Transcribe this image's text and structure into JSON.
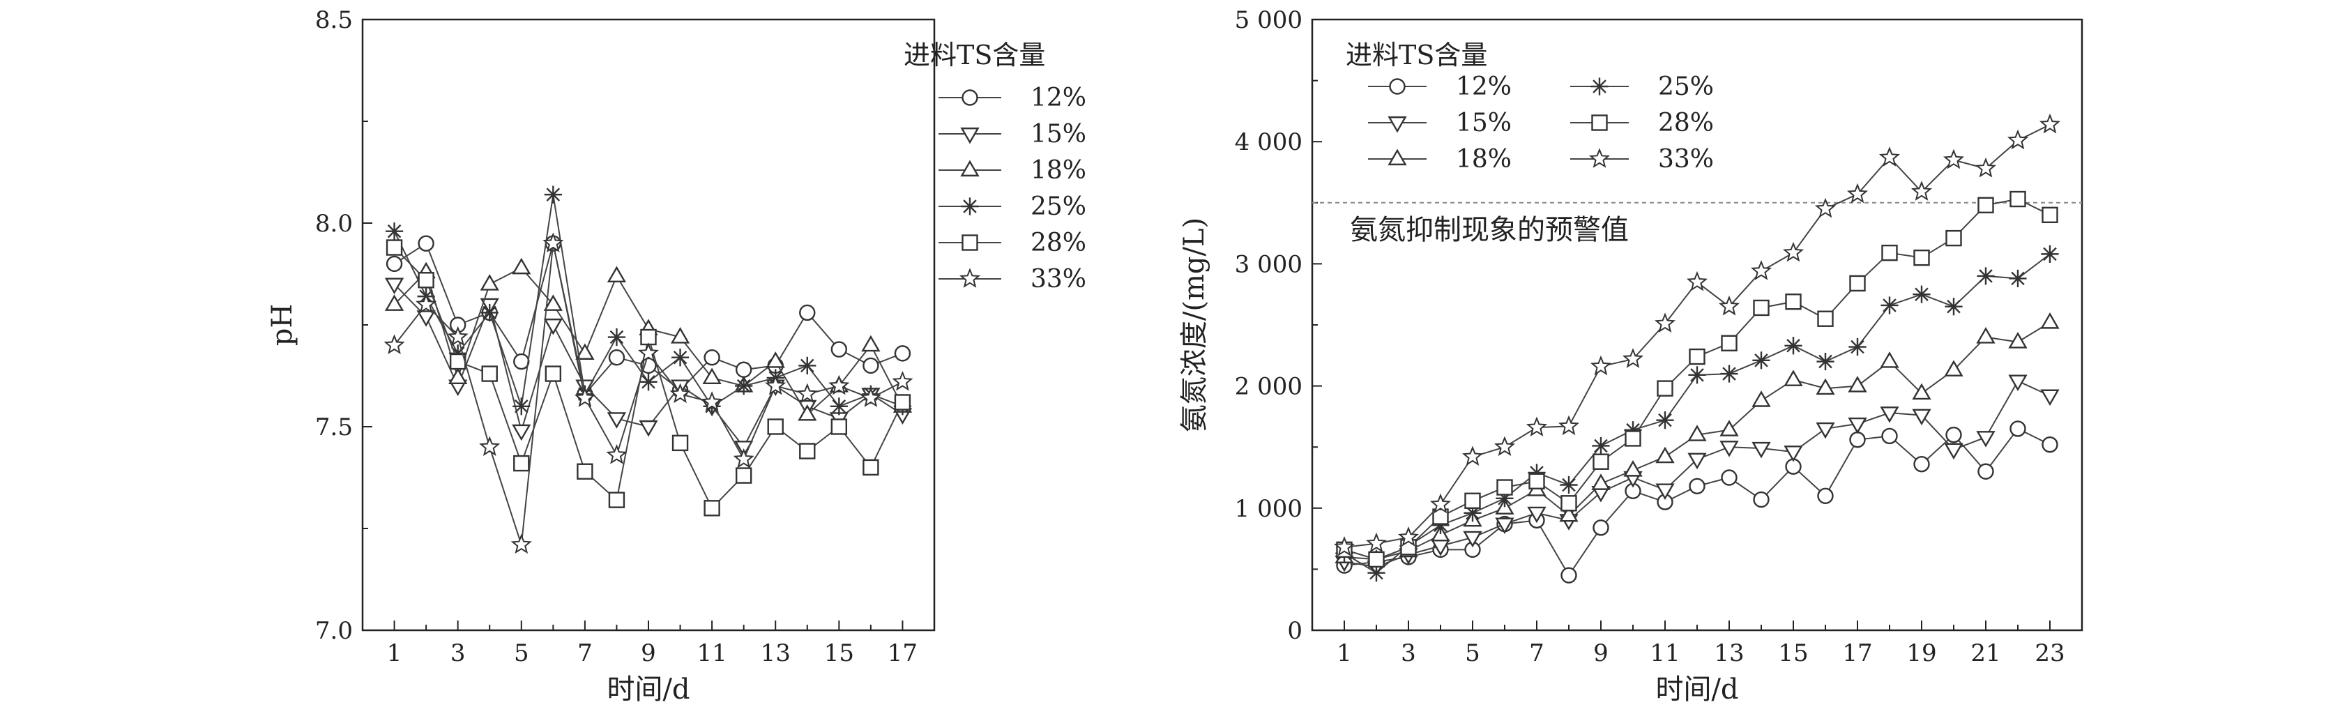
{
  "chart_data": [
    {
      "type": "line",
      "xlabel": "时间/d",
      "ylabel": "pH",
      "xlim": [
        0,
        18
      ],
      "ylim": [
        7.0,
        8.5
      ],
      "x_ticks": [
        "1",
        "3",
        "5",
        "7",
        "9",
        "11",
        "13",
        "15",
        "17"
      ],
      "y_ticks": [
        "7.0",
        "7.5",
        "8.0",
        "8.5"
      ],
      "legend_title": "进料TS含量",
      "legend_position": "top-right",
      "grid": false,
      "x": [
        1,
        2,
        3,
        4,
        5,
        6,
        7,
        8,
        9,
        10,
        11,
        12,
        13,
        14,
        15,
        16,
        17
      ],
      "series": [
        {
          "name": "12%",
          "marker": "circle",
          "values": [
            7.9,
            7.95,
            7.75,
            7.78,
            7.66,
            7.95,
            7.58,
            7.67,
            7.65,
            7.59,
            7.67,
            7.64,
            7.65,
            7.78,
            7.69,
            7.65,
            7.68
          ]
        },
        {
          "name": "15%",
          "marker": "triangle-down",
          "values": [
            7.85,
            7.77,
            7.6,
            7.8,
            7.49,
            7.75,
            7.6,
            7.52,
            7.5,
            7.6,
            7.55,
            7.45,
            7.6,
            7.55,
            7.52,
            7.58,
            7.53
          ]
        },
        {
          "name": "18%",
          "marker": "triangle-up",
          "values": [
            7.8,
            7.88,
            7.62,
            7.85,
            7.89,
            7.8,
            7.68,
            7.87,
            7.74,
            7.72,
            7.62,
            7.6,
            7.66,
            7.53,
            7.6,
            7.7,
            7.55
          ]
        },
        {
          "name": "25%",
          "marker": "star-asterisk",
          "values": [
            7.98,
            7.82,
            7.68,
            7.78,
            7.55,
            8.07,
            7.58,
            7.72,
            7.61,
            7.67,
            7.55,
            7.6,
            7.62,
            7.65,
            7.55,
            7.58,
            7.55
          ]
        },
        {
          "name": "28%",
          "marker": "square",
          "values": [
            7.94,
            7.86,
            7.66,
            7.63,
            7.41,
            7.63,
            7.39,
            7.32,
            7.72,
            7.46,
            7.3,
            7.38,
            7.5,
            7.44,
            7.5,
            7.4,
            7.56
          ]
        },
        {
          "name": "33%",
          "marker": "star",
          "values": [
            7.7,
            7.8,
            7.72,
            7.45,
            7.21,
            7.95,
            7.57,
            7.43,
            7.68,
            7.58,
            7.56,
            7.42,
            7.6,
            7.58,
            7.6,
            7.57,
            7.61
          ]
        }
      ]
    },
    {
      "type": "line",
      "xlabel": "时间/d",
      "ylabel": "氨氮浓度/(mg/L)",
      "xlim": [
        0,
        24
      ],
      "ylim": [
        0,
        5000
      ],
      "x_ticks": [
        "1",
        "3",
        "5",
        "7",
        "9",
        "11",
        "13",
        "15",
        "17",
        "19",
        "21",
        "23"
      ],
      "y_ticks": [
        "0",
        "1 000",
        "2 000",
        "3 000",
        "4 000",
        "5 000"
      ],
      "legend_title": "进料TS含量",
      "legend_position": "top-left",
      "grid": false,
      "threshold": {
        "value": 3500,
        "label": "氨氮抑制现象的预警值"
      },
      "x": [
        1,
        2,
        3,
        4,
        5,
        6,
        7,
        8,
        9,
        10,
        11,
        12,
        13,
        14,
        15,
        16,
        17,
        18,
        19,
        20,
        21,
        22,
        23
      ],
      "series": [
        {
          "name": "12%",
          "marker": "circle",
          "values": [
            530,
            560,
            600,
            660,
            660,
            870,
            900,
            450,
            840,
            1140,
            1050,
            1180,
            1250,
            1070,
            1340,
            1100,
            1560,
            1590,
            1360,
            1600,
            1300,
            1650,
            1520
          ]
        },
        {
          "name": "15%",
          "marker": "triangle-down",
          "values": [
            560,
            520,
            620,
            690,
            760,
            870,
            960,
            900,
            1130,
            1250,
            1150,
            1400,
            1500,
            1490,
            1460,
            1650,
            1690,
            1780,
            1760,
            1480,
            1580,
            2040,
            1920
          ]
        },
        {
          "name": "18%",
          "marker": "triangle-up",
          "values": [
            600,
            580,
            650,
            780,
            900,
            1000,
            1150,
            940,
            1200,
            1310,
            1420,
            1600,
            1640,
            1880,
            2050,
            1980,
            2000,
            2200,
            1940,
            2130,
            2400,
            2360,
            2520
          ]
        },
        {
          "name": "25%",
          "marker": "star-asterisk",
          "values": [
            630,
            470,
            690,
            860,
            960,
            1080,
            1290,
            1190,
            1510,
            1640,
            1720,
            2090,
            2100,
            2210,
            2330,
            2200,
            2320,
            2660,
            2750,
            2650,
            2900,
            2880,
            3080
          ]
        },
        {
          "name": "28%",
          "marker": "square",
          "values": [
            660,
            580,
            680,
            930,
            1060,
            1170,
            1220,
            1040,
            1380,
            1570,
            1980,
            2240,
            2350,
            2640,
            2690,
            2550,
            2840,
            3090,
            3050,
            3210,
            3480,
            3530,
            3400
          ]
        },
        {
          "name": "33%",
          "marker": "star",
          "values": [
            680,
            710,
            760,
            1030,
            1420,
            1500,
            1660,
            1670,
            2160,
            2220,
            2510,
            2850,
            2650,
            2940,
            3090,
            3450,
            3570,
            3870,
            3590,
            3850,
            3780,
            4010,
            4140
          ]
        }
      ]
    }
  ]
}
